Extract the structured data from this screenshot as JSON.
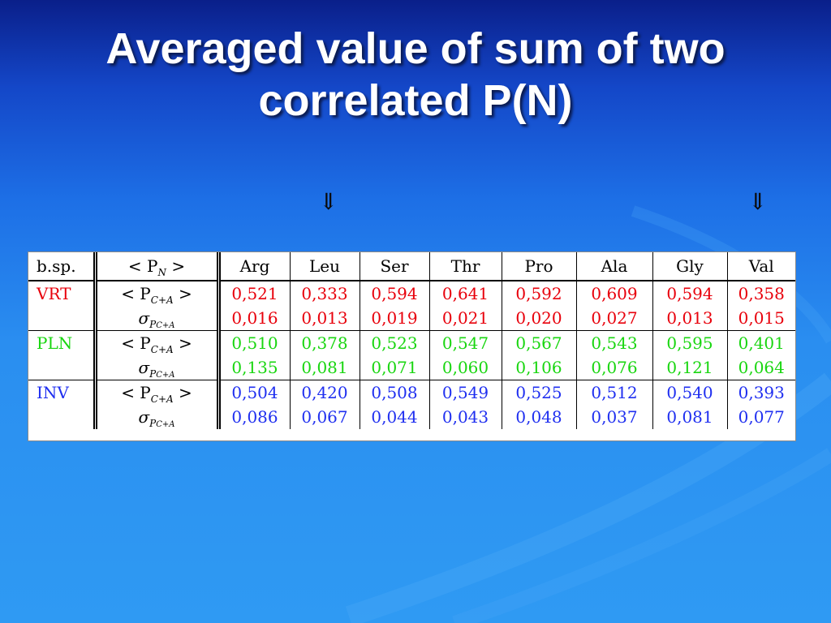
{
  "slide": {
    "title_line1": "Averaged value of sum of two",
    "title_line2": "correlated P(N)",
    "arrow_glyph": "⇓"
  },
  "table": {
    "header": {
      "species": "b.sp.",
      "stat_open": "< P",
      "stat_sub": "N",
      "stat_close": " >",
      "columns": [
        "Arg",
        "Leu",
        "Ser",
        "Thr",
        "Pro",
        "Ala",
        "Gly",
        "Val"
      ]
    },
    "mean_label": {
      "open": "< P",
      "sub": "C+A",
      "close": " >"
    },
    "sigma_label": {
      "sym": "σ",
      "sub": "P",
      "subsub": "C+A"
    },
    "groups": [
      {
        "species": "VRT",
        "color": "#e8000b",
        "mean": [
          "0,521",
          "0,333",
          "0,594",
          "0,641",
          "0,592",
          "0,609",
          "0,594",
          "0,358"
        ],
        "sigma": [
          "0,016",
          "0,013",
          "0,019",
          "0,021",
          "0,020",
          "0,027",
          "0,013",
          "0,015"
        ]
      },
      {
        "species": "PLN",
        "color": "#19d610",
        "mean": [
          "0,510",
          "0,378",
          "0,523",
          "0,547",
          "0,567",
          "0,543",
          "0,595",
          "0,401"
        ],
        "sigma": [
          "0,135",
          "0,081",
          "0,071",
          "0,060",
          "0,106",
          "0,076",
          "0,121",
          "0,064"
        ]
      },
      {
        "species": "INV",
        "color": "#1f2ff0",
        "mean": [
          "0,504",
          "0,420",
          "0,508",
          "0,549",
          "0,525",
          "0,512",
          "0,540",
          "0,393"
        ],
        "sigma": [
          "0,086",
          "0,067",
          "0,044",
          "0,043",
          "0,048",
          "0,037",
          "0,081",
          "0,077"
        ]
      }
    ]
  }
}
